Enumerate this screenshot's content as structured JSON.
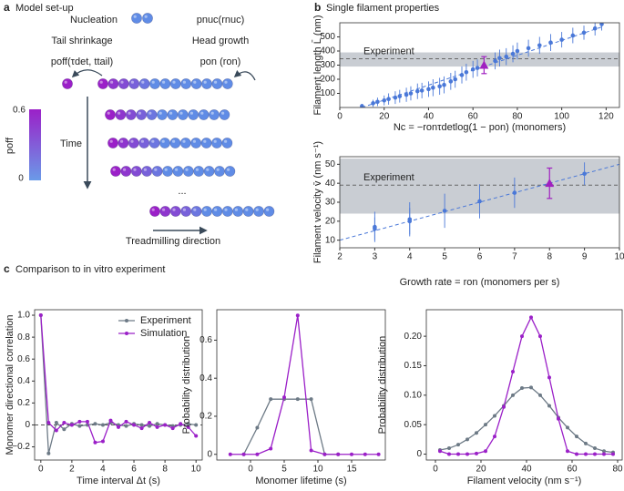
{
  "figure": {
    "panel_labels": [
      "a",
      "b",
      "c"
    ],
    "panel_titles": [
      "Model set-up",
      "Single filament properties",
      "Comparison to in vitro experiment"
    ]
  },
  "diagram": {
    "nucleation": "Nucleation",
    "p_nuc": "pnuc(rnuc)",
    "tail": "Tail shrinkage",
    "head": "Head growth",
    "p_off": "poff(τdet, ttail)",
    "p_on": "pon (ron)",
    "time": "Time",
    "ellipsis": "...",
    "direction": "Treadmilling direction",
    "colorbar": {
      "label": "poff",
      "ticks": [
        0.6,
        0
      ]
    }
  },
  "chart_data": [
    {
      "type": "scatter",
      "xlabel": "Nc = −ronτdetlog(1 − pon) (monomers)",
      "ylabel": "Filament length L̄ (nm)",
      "xlim": [
        0,
        126
      ],
      "ylim": [
        0,
        600
      ],
      "xticks": [
        0,
        20,
        40,
        60,
        80,
        100,
        120
      ],
      "yticks": [
        100,
        200,
        300,
        400,
        500
      ],
      "color": "#4a78d8",
      "x": [
        10,
        15,
        17,
        20,
        22,
        25,
        27,
        30,
        32,
        35,
        37,
        40,
        42,
        45,
        47,
        50,
        52,
        55,
        57,
        60,
        62,
        70,
        72,
        75,
        78,
        80,
        85,
        90,
        95,
        100,
        105,
        110,
        115,
        118
      ],
      "values": [
        10,
        30,
        40,
        50,
        60,
        70,
        80,
        90,
        100,
        115,
        120,
        130,
        140,
        150,
        160,
        185,
        200,
        230,
        250,
        270,
        280,
        330,
        350,
        360,
        380,
        400,
        420,
        440,
        460,
        480,
        510,
        530,
        560,
        590
      ],
      "errors": [
        15,
        25,
        30,
        35,
        40,
        45,
        45,
        50,
        50,
        55,
        55,
        55,
        60,
        60,
        60,
        60,
        60,
        60,
        60,
        60,
        60,
        60,
        60,
        60,
        60,
        60,
        60,
        60,
        60,
        55,
        55,
        50,
        50,
        45
      ],
      "highlight": {
        "x": 65,
        "value": 300,
        "error": 60,
        "color": "#a020c0"
      },
      "experiment": {
        "label": "Experiment",
        "band": [
          290,
          390
        ],
        "mean": 345
      },
      "fit": {
        "x": [
          10,
          118
        ],
        "values": [
          0,
          570
        ]
      }
    },
    {
      "type": "scatter",
      "xlabel": "Growth rate = ron (monomers per s)",
      "ylabel": "Filament velocity v̄ (nm s⁻¹)",
      "xlim": [
        2,
        10
      ],
      "ylim": [
        6,
        54
      ],
      "xticks": [
        2,
        3,
        4,
        5,
        6,
        7,
        8,
        9,
        10
      ],
      "yticks": [
        10,
        20,
        30,
        40,
        50
      ],
      "color": "#4a78d8",
      "x": [
        3,
        3,
        4,
        4,
        5,
        6,
        7,
        9
      ],
      "values": [
        17,
        16,
        21,
        20,
        25.5,
        30.5,
        35,
        45
      ],
      "errors": [
        8,
        6,
        9,
        7,
        9,
        9,
        8,
        6
      ],
      "highlight": {
        "x": 8,
        "value": 40,
        "error": 8,
        "color": "#a020c0"
      },
      "experiment": {
        "label": "Experiment",
        "band": [
          24,
          53
        ],
        "mean": 39
      },
      "fit": {
        "x": [
          2,
          10
        ],
        "values": [
          10,
          50
        ]
      }
    },
    {
      "type": "line",
      "xlabel": "Time interval Δt (s)",
      "ylabel": "Monomer directional correlation",
      "xlim": [
        -0.4,
        10.4
      ],
      "ylim": [
        -0.32,
        1.05
      ],
      "xticks": [
        0,
        2,
        4,
        6,
        8,
        10
      ],
      "yticks": [
        {
          "value": -0.2,
          "label": "−0.2"
        },
        0,
        0.2,
        0.4,
        0.6,
        0.8,
        {
          "value": 1,
          "label": "1.0"
        }
      ],
      "zero_line": 0,
      "legend": "upper right",
      "series": [
        {
          "name": "Experiment",
          "color": "#6d7a86",
          "x": [
            0,
            0.5,
            1,
            1.5,
            2,
            2.5,
            3,
            3.5,
            4,
            4.5,
            5,
            5.5,
            6,
            6.5,
            7,
            7.5,
            8,
            8.5,
            9,
            9.5,
            10
          ],
          "values": [
            1.0,
            -0.26,
            0.02,
            -0.04,
            0.01,
            -0.01,
            0.0,
            0.01,
            0.0,
            0.02,
            0.0,
            -0.01,
            0.01,
            0.0,
            -0.01,
            0.01,
            0.0,
            -0.01,
            0.0,
            0.01,
            0.0
          ]
        },
        {
          "name": "Simulation",
          "color": "#9b20c8",
          "x": [
            0,
            0.5,
            1,
            1.5,
            2,
            2.5,
            3,
            3.5,
            4,
            4.5,
            5,
            5.5,
            6,
            6.5,
            7,
            7.5,
            8,
            8.5,
            9,
            9.5,
            10
          ],
          "values": [
            1.0,
            0.02,
            -0.05,
            0.02,
            0.0,
            0.03,
            0.03,
            -0.16,
            -0.15,
            0.04,
            -0.02,
            0.03,
            0.0,
            -0.03,
            0.02,
            -0.02,
            0.0,
            -0.03,
            0.01,
            -0.02,
            -0.1
          ]
        }
      ]
    },
    {
      "type": "line",
      "xlabel": "Monomer lifetime (s)",
      "ylabel": "Probability distribution",
      "xlim": [
        -5,
        20
      ],
      "ylim": [
        -0.03,
        0.76
      ],
      "xticks": [
        0,
        5,
        10,
        15
      ],
      "yticks": [
        0,
        0.2,
        0.4,
        0.6
      ],
      "series": [
        {
          "name": "Experiment",
          "color": "#6d7a86",
          "x": [
            -1,
            1,
            3,
            5,
            7,
            9,
            11,
            13
          ],
          "values": [
            0,
            0.14,
            0.29,
            0.29,
            0.29,
            0.29,
            0,
            0
          ]
        },
        {
          "name": "Simulation",
          "color": "#9b20c8",
          "x": [
            -3,
            -1,
            1,
            3,
            5,
            7,
            9,
            11,
            13,
            15,
            17,
            19
          ],
          "values": [
            0,
            0,
            0,
            0.03,
            0.3,
            0.73,
            0.02,
            0,
            0,
            0,
            0,
            0
          ]
        }
      ]
    },
    {
      "type": "line",
      "xlabel": "Filament velocity (nm s⁻¹)",
      "ylabel": "Probability distribution",
      "xlim": [
        -4,
        82
      ],
      "ylim": [
        -0.01,
        0.245
      ],
      "xticks": [
        0,
        20,
        40,
        60,
        80
      ],
      "yticks": [
        0,
        0.05,
        {
          "value": 0.1,
          "label": "0.10"
        },
        0.15,
        {
          "value": 0.2,
          "label": "0.20"
        }
      ],
      "series": [
        {
          "name": "Experiment",
          "color": "#6d7a86",
          "x": [
            2,
            6,
            10,
            14,
            18,
            22,
            26,
            30,
            34,
            38,
            42,
            46,
            50,
            54,
            58,
            62,
            66,
            70,
            74,
            78
          ],
          "values": [
            0.007,
            0.01,
            0.016,
            0.025,
            0.036,
            0.05,
            0.065,
            0.082,
            0.1,
            0.112,
            0.113,
            0.1,
            0.082,
            0.062,
            0.045,
            0.03,
            0.018,
            0.01,
            0.005,
            0.003
          ]
        },
        {
          "name": "Simulation",
          "color": "#9b20c8",
          "x": [
            2,
            6,
            10,
            14,
            18,
            22,
            26,
            30,
            34,
            38,
            42,
            46,
            50,
            54,
            58,
            62,
            66,
            70,
            74,
            78
          ],
          "values": [
            0.005,
            0,
            0,
            0,
            0.001,
            0.005,
            0.03,
            0.08,
            0.14,
            0.2,
            0.232,
            0.2,
            0.13,
            0.06,
            0.005,
            0,
            0,
            0,
            0,
            0
          ]
        }
      ]
    }
  ]
}
